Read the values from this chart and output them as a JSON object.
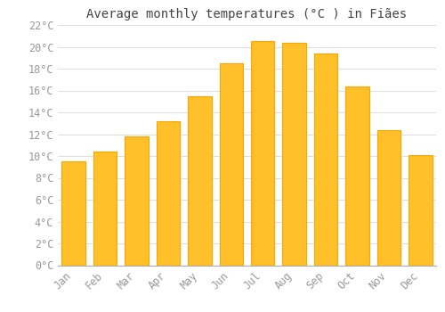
{
  "title": "Average monthly temperatures (°C ) in Fiães",
  "months": [
    "Jan",
    "Feb",
    "Mar",
    "Apr",
    "May",
    "Jun",
    "Jul",
    "Aug",
    "Sep",
    "Oct",
    "Nov",
    "Dec"
  ],
  "values": [
    9.5,
    10.4,
    11.8,
    13.2,
    15.5,
    18.5,
    20.5,
    20.4,
    19.4,
    16.4,
    12.4,
    10.1
  ],
  "bar_color_light": "#FFD966",
  "bar_color_main": "#FFA500",
  "bar_edge_color": "#FFA500",
  "background_color": "#FFFFFF",
  "grid_color": "#DDDDDD",
  "text_color": "#999999",
  "title_color": "#444444",
  "ylim": [
    0,
    22
  ],
  "ytick_step": 2,
  "title_fontsize": 10,
  "tick_fontsize": 8.5
}
